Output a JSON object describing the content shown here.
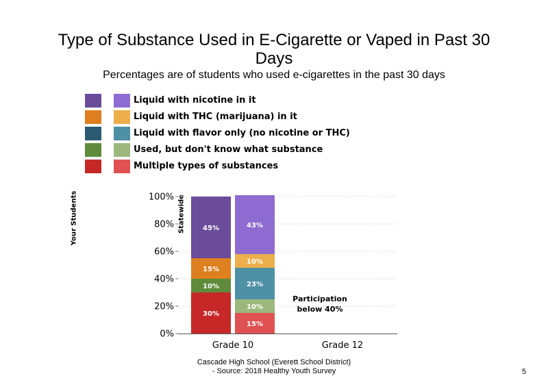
{
  "title_line1": "Type of Substance Used in E-Cigarette or Vaped in Past 30",
  "title_line2": "Days",
  "subtitle": "Percentages are of students  who used e-cigarettes in the past 30 days",
  "legend": {
    "your_students_label": "Your Students",
    "statewide_label": "Statewide",
    "items": [
      {
        "label": "Liquid with nicotine in it",
        "your_color": "#6b4c9a",
        "state_color": "#8e6bd0"
      },
      {
        "label": "Liquid with THC (marijuana) in it",
        "your_color": "#de8020",
        "state_color": "#ecaf4b"
      },
      {
        "label": "Liquid with flavor only (no nicotine or THC)",
        "your_color": "#2c5a72",
        "state_color": "#4e90a4"
      },
      {
        "label": "Used, but don't know what substance",
        "your_color": "#5f8a3c",
        "state_color": "#9cb87c"
      },
      {
        "label": "Multiple types of substances",
        "your_color": "#c62828",
        "state_color": "#e05252"
      }
    ]
  },
  "chart_data": {
    "type": "bar",
    "stacked": true,
    "categories": [
      "Grade 10",
      "Grade 12"
    ],
    "ylim": [
      0,
      100
    ],
    "yticks": [
      "0%",
      "20%",
      "40%",
      "60%",
      "80%",
      "100%"
    ],
    "grid": "dotted horizontal",
    "bars": [
      {
        "category": "Grade 10",
        "group": "Your Students",
        "segments": [
          {
            "series": "Multiple types of substances",
            "value": 30,
            "label": "30%",
            "color": "#c62828"
          },
          {
            "series": "Used, but don't know what substance",
            "value": 10,
            "label": "10%",
            "color": "#5f8a3c"
          },
          {
            "series": "Liquid with THC (marijuana) in it",
            "value": 15,
            "label": "15%",
            "color": "#de8020"
          },
          {
            "series": "Liquid with nicotine in it",
            "value": 45,
            "label": "45%",
            "color": "#6b4c9a"
          }
        ]
      },
      {
        "category": "Grade 10",
        "group": "Statewide",
        "segments": [
          {
            "series": "Multiple types of substances",
            "value": 15,
            "label": "15%",
            "color": "#e05252"
          },
          {
            "series": "Used, but don't know what substance",
            "value": 10,
            "label": "10%",
            "color": "#9cb87c"
          },
          {
            "series": "Liquid with flavor only (no nicotine or THC)",
            "value": 23,
            "label": "23%",
            "color": "#4e90a4"
          },
          {
            "series": "Liquid with THC (marijuana) in it",
            "value": 10,
            "label": "10%",
            "color": "#ecaf4b"
          },
          {
            "series": "Liquid with nicotine in it",
            "value": 43,
            "label": "43%",
            "color": "#8e6bd0"
          }
        ]
      }
    ],
    "annotations": [
      {
        "category": "Grade 12",
        "lines": [
          "Participation",
          "below 40%"
        ]
      }
    ]
  },
  "footer_line1": "Cascade High School (Everett School District)",
  "footer_line2": "- Source: 2018 Healthy  Youth Survey",
  "page_number": "5"
}
